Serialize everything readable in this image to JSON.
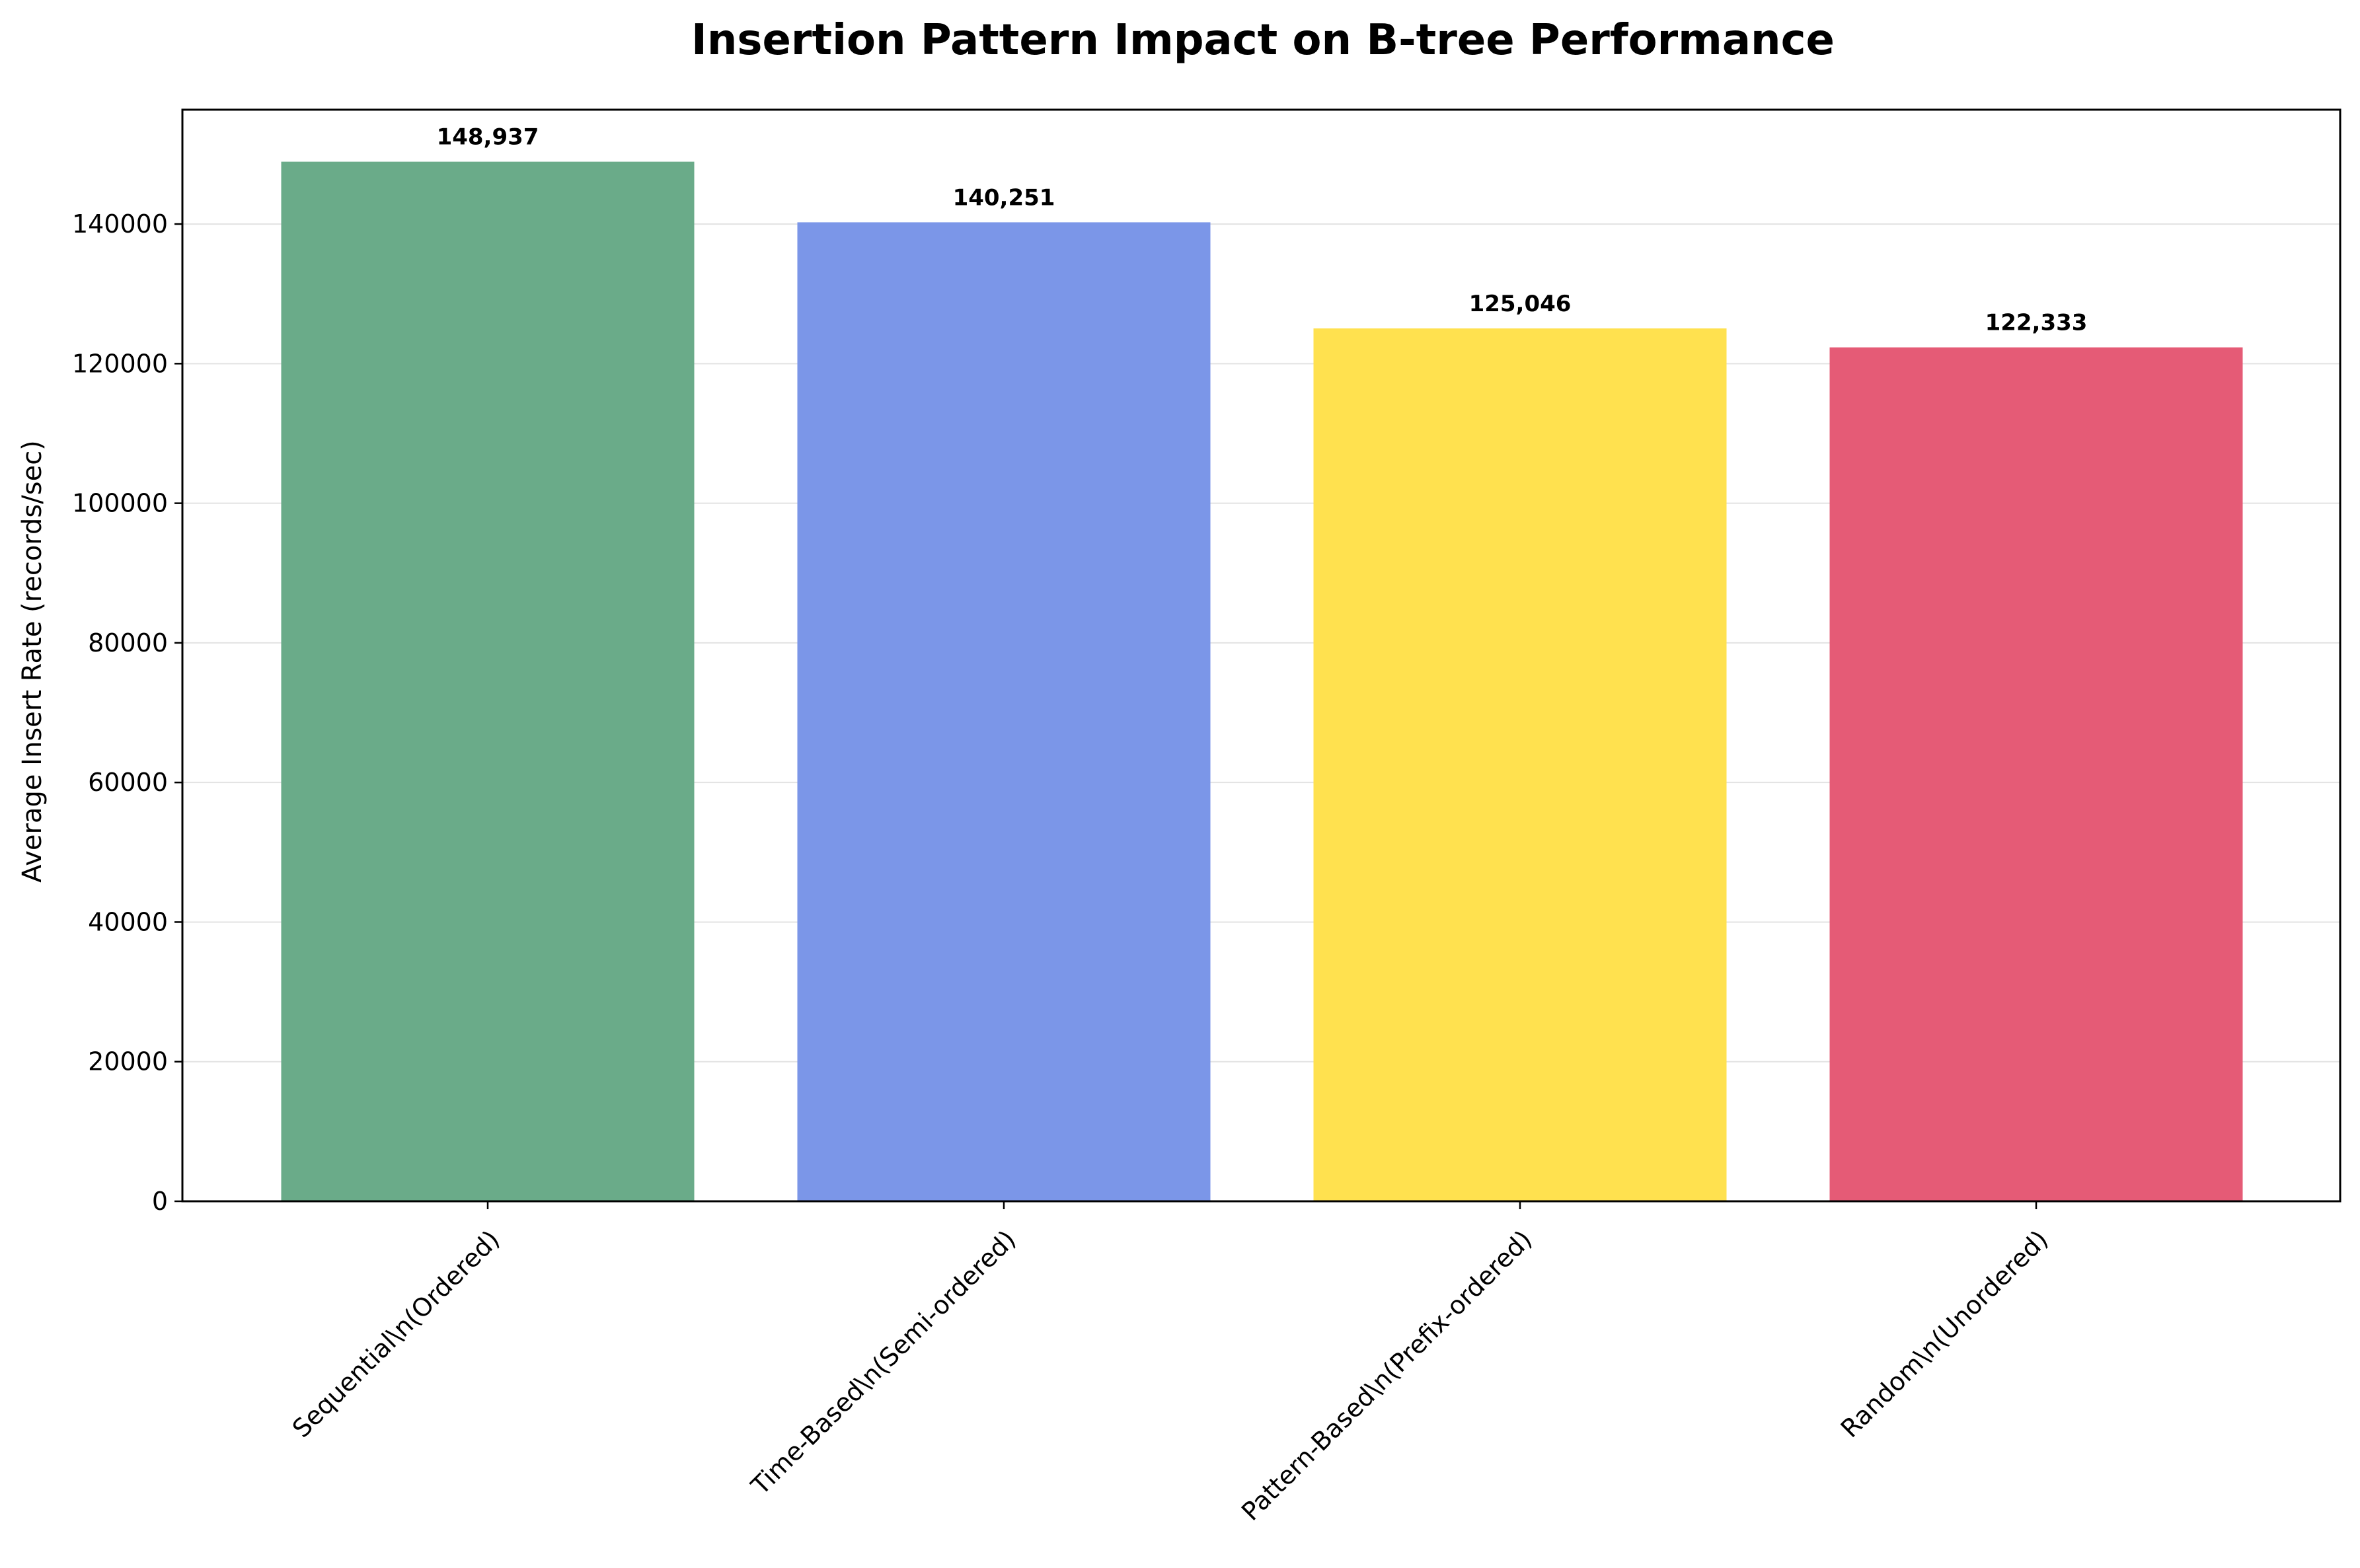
{
  "chart_data": {
    "type": "bar",
    "title": "Insertion Pattern Impact on B-tree Performance",
    "xlabel": "",
    "ylabel": "Average Insert Rate (records/sec)",
    "categories": [
      "Sequential\\n(Ordered)",
      "Time-Based\\n(Semi-ordered)",
      "Pattern-Based\\n(Prefix-ordered)",
      "Random\\n(Unordered)"
    ],
    "values": [
      148937,
      140251,
      125046,
      122333
    ],
    "value_labels": [
      "148,937",
      "140,251",
      "125,046",
      "122,333"
    ],
    "colors": [
      "#6aab89",
      "#7b96e8",
      "#ffe14f",
      "#e55b76"
    ],
    "ylim": [
      0,
      156383
    ],
    "yticks": [
      0,
      20000,
      40000,
      60000,
      80000,
      100000,
      120000,
      140000
    ],
    "ytick_labels": [
      "0",
      "20000",
      "40000",
      "60000",
      "80000",
      "100000",
      "120000",
      "140000"
    ],
    "grid": "y",
    "legend": "none"
  }
}
